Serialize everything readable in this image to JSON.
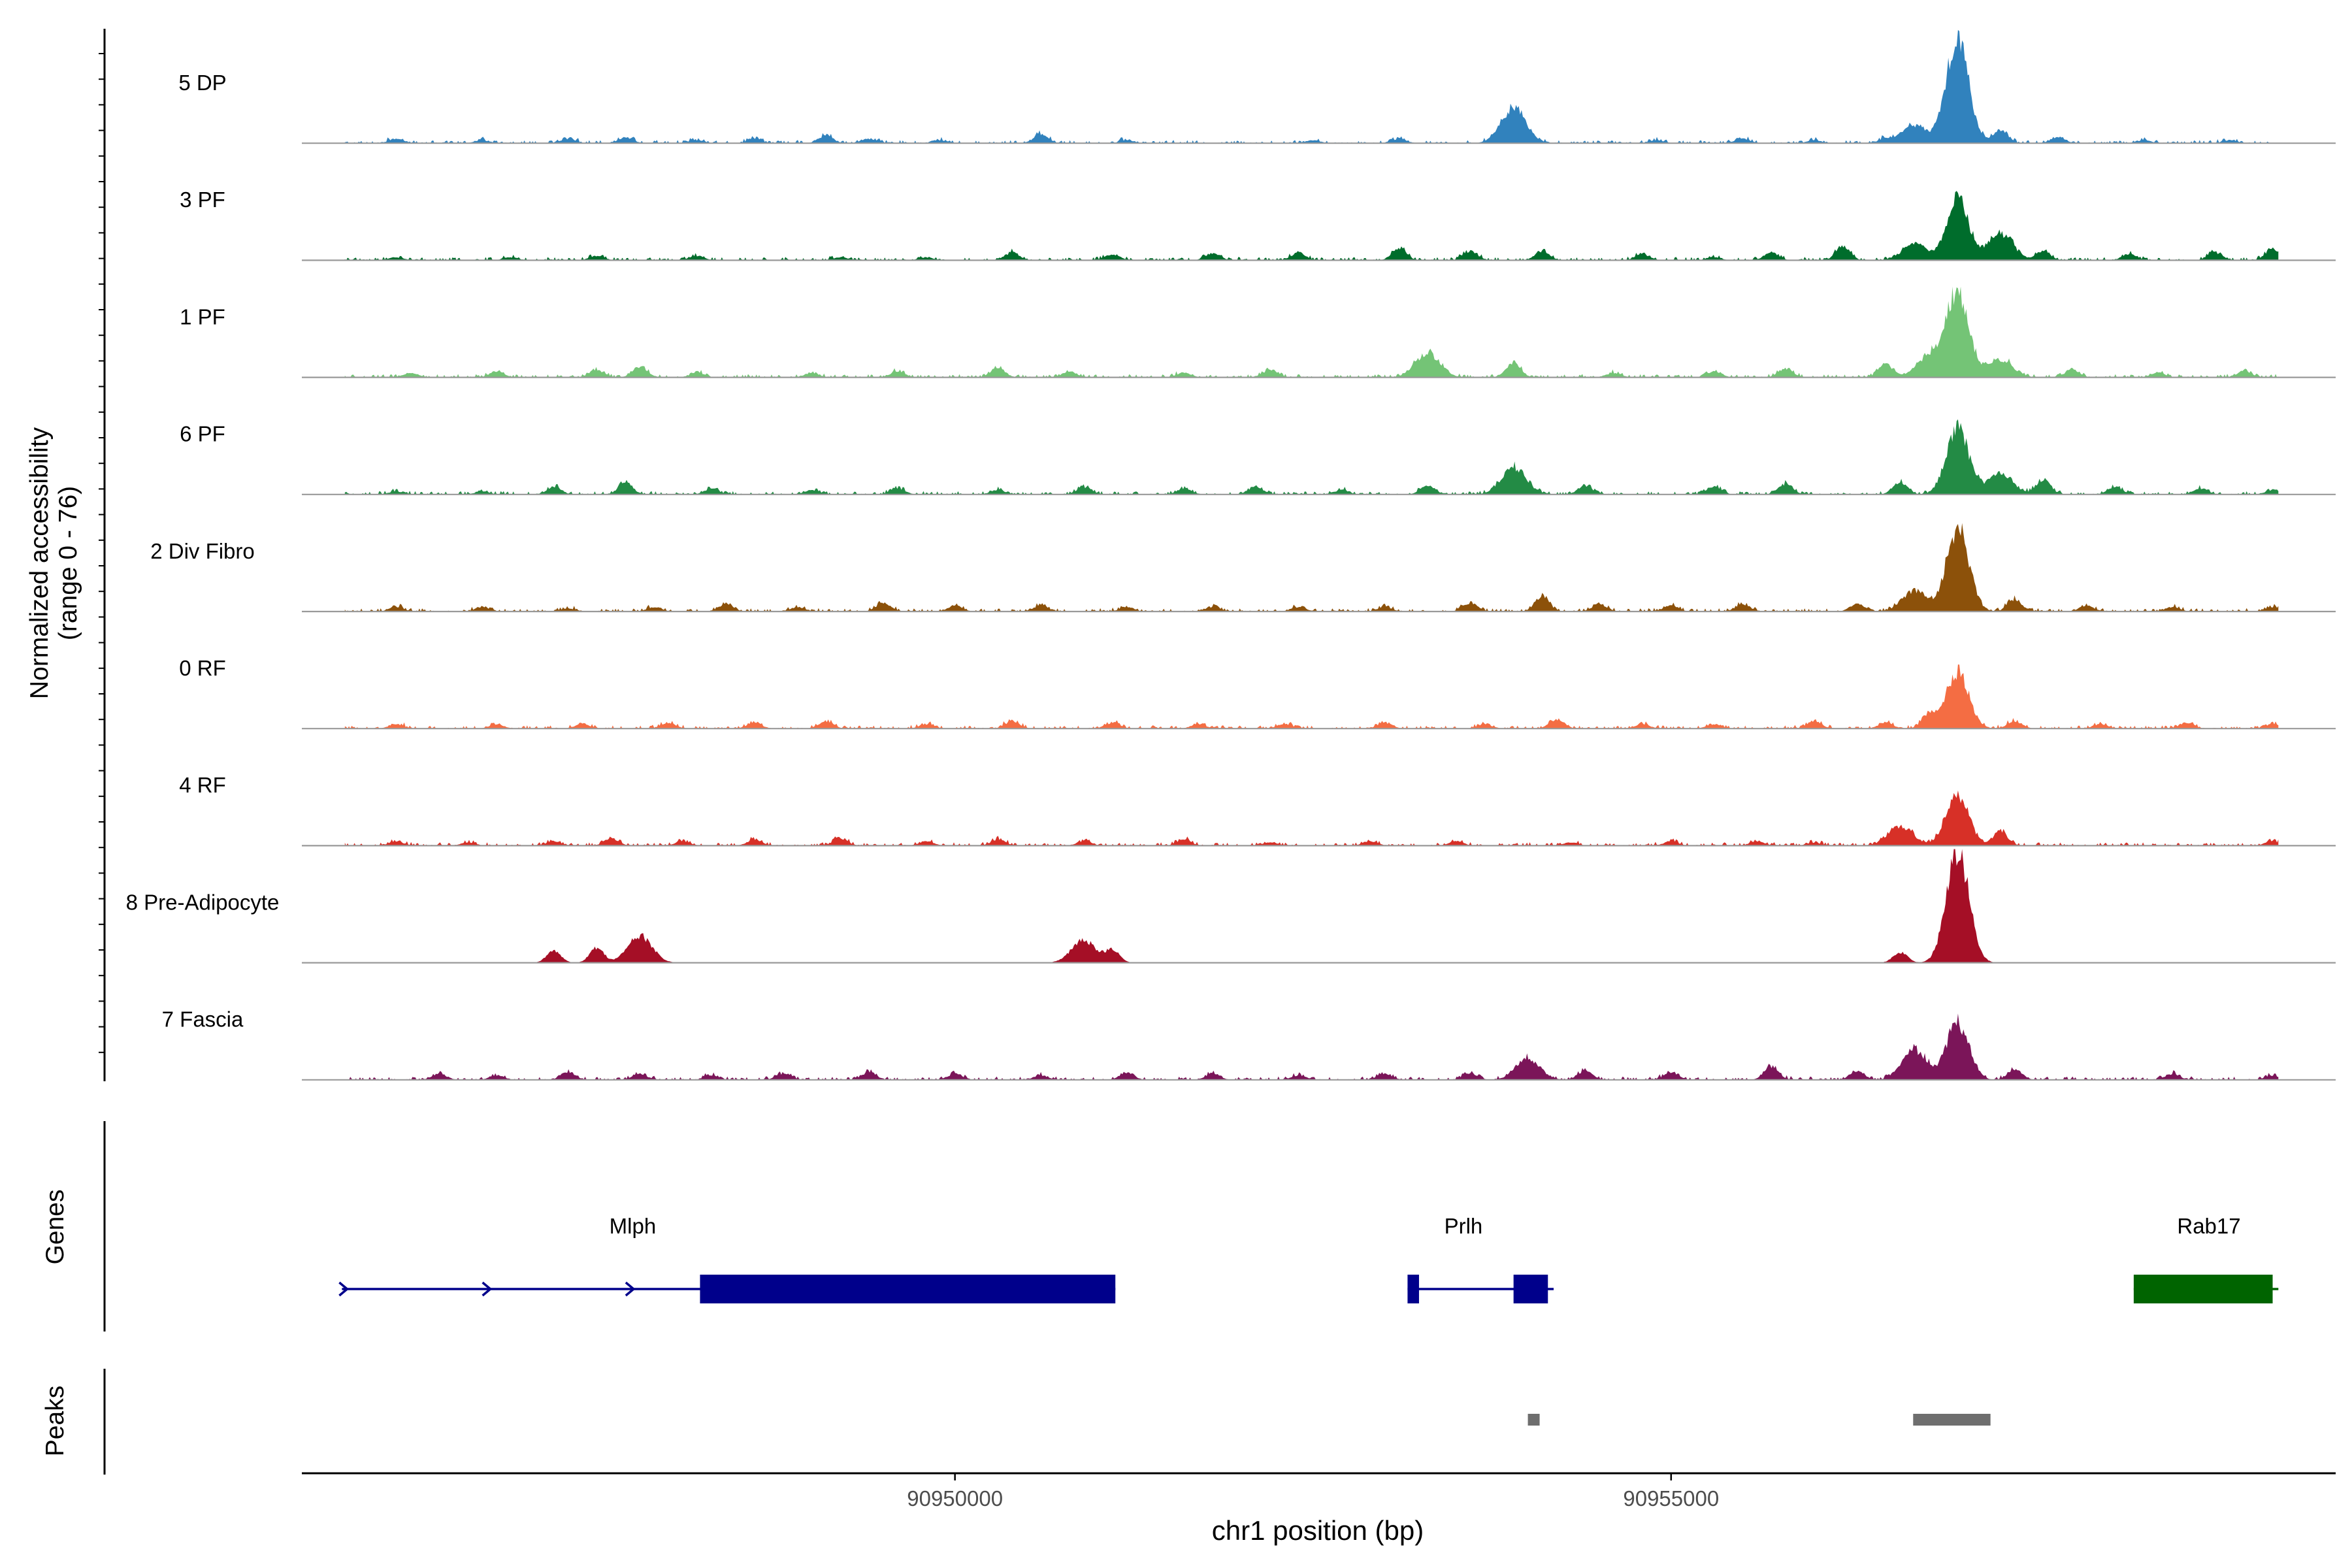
{
  "chart_data": {
    "type": "area",
    "ylabel_line1": "Normalized accessibility",
    "ylabel_line2": "(range 0 - 76)",
    "ylim": [
      0,
      76
    ],
    "xlabel": "chr1 position (bp)",
    "xlim": [
      90945440,
      90959640
    ],
    "x_ticks": [
      {
        "value": 90950000,
        "label": "90950000"
      },
      {
        "value": 90955000,
        "label": "90955000"
      }
    ],
    "tracks": [
      {
        "name": "5 DP",
        "color": "#3182BD",
        "peaks": [
          [
            90946100,
            3
          ],
          [
            90946700,
            2
          ],
          [
            90947300,
            3
          ],
          [
            90947700,
            4
          ],
          [
            90948200,
            2
          ],
          [
            90948600,
            3
          ],
          [
            90949100,
            5
          ],
          [
            90949400,
            3
          ],
          [
            90949900,
            2
          ],
          [
            90950600,
            6
          ],
          [
            90951200,
            2
          ],
          [
            90952500,
            2
          ],
          [
            90953100,
            3
          ],
          [
            90953900,
            24
          ],
          [
            90954900,
            2
          ],
          [
            90955500,
            3
          ],
          [
            90956000,
            2
          ],
          [
            90956500,
            3
          ],
          [
            90956700,
            12
          ],
          [
            90957000,
            70
          ],
          [
            90957300,
            9
          ],
          [
            90957700,
            4
          ],
          [
            90958300,
            2
          ],
          [
            90958900,
            2
          ]
        ]
      },
      {
        "name": "3 PF",
        "color": "#006D2C",
        "peaks": [
          [
            90946100,
            2
          ],
          [
            90946900,
            2
          ],
          [
            90947500,
            3
          ],
          [
            90948200,
            3
          ],
          [
            90949200,
            2
          ],
          [
            90949800,
            2
          ],
          [
            90950400,
            5
          ],
          [
            90951100,
            4
          ],
          [
            90951800,
            5
          ],
          [
            90952400,
            5
          ],
          [
            90953100,
            8
          ],
          [
            90953600,
            6
          ],
          [
            90954100,
            6
          ],
          [
            90954800,
            4
          ],
          [
            90955300,
            2
          ],
          [
            90955700,
            5
          ],
          [
            90956200,
            9
          ],
          [
            90956700,
            11
          ],
          [
            90957000,
            40
          ],
          [
            90957300,
            18
          ],
          [
            90957600,
            6
          ],
          [
            90958200,
            4
          ],
          [
            90958800,
            5
          ],
          [
            90959200,
            8
          ]
        ]
      },
      {
        "name": "1 PF",
        "color": "#74C476",
        "peaks": [
          [
            90946200,
            3
          ],
          [
            90946800,
            4
          ],
          [
            90947500,
            5
          ],
          [
            90947800,
            7
          ],
          [
            90948200,
            3
          ],
          [
            90949000,
            3
          ],
          [
            90949600,
            4
          ],
          [
            90950300,
            6
          ],
          [
            90950800,
            4
          ],
          [
            90951600,
            3
          ],
          [
            90952200,
            5
          ],
          [
            90953300,
            16
          ],
          [
            90953900,
            10
          ],
          [
            90954600,
            3
          ],
          [
            90955300,
            4
          ],
          [
            90955800,
            6
          ],
          [
            90956500,
            9
          ],
          [
            90956800,
            14
          ],
          [
            90957000,
            58
          ],
          [
            90957300,
            12
          ],
          [
            90957800,
            5
          ],
          [
            90958400,
            3
          ],
          [
            90959000,
            4
          ]
        ]
      },
      {
        "name": "6 PF",
        "color": "#238B45",
        "peaks": [
          [
            90946100,
            2
          ],
          [
            90946700,
            2
          ],
          [
            90947200,
            5
          ],
          [
            90947700,
            8
          ],
          [
            90948300,
            4
          ],
          [
            90949000,
            3
          ],
          [
            90949600,
            4
          ],
          [
            90950300,
            3
          ],
          [
            90950900,
            5
          ],
          [
            90951600,
            4
          ],
          [
            90952100,
            5
          ],
          [
            90952700,
            3
          ],
          [
            90953300,
            6
          ],
          [
            90953900,
            18
          ],
          [
            90954400,
            6
          ],
          [
            90955300,
            5
          ],
          [
            90955800,
            7
          ],
          [
            90956600,
            8
          ],
          [
            90957000,
            44
          ],
          [
            90957300,
            14
          ],
          [
            90957600,
            10
          ],
          [
            90958100,
            5
          ],
          [
            90958700,
            4
          ],
          [
            90959200,
            3
          ]
        ]
      },
      {
        "name": "2 Div Fibro",
        "color": "#8C510A",
        "peaks": [
          [
            90946100,
            3
          ],
          [
            90946700,
            3
          ],
          [
            90947300,
            2
          ],
          [
            90947900,
            3
          ],
          [
            90948400,
            5
          ],
          [
            90948900,
            3
          ],
          [
            90949500,
            6
          ],
          [
            90950000,
            4
          ],
          [
            90950600,
            4
          ],
          [
            90951200,
            3
          ],
          [
            90951800,
            3
          ],
          [
            90952400,
            3
          ],
          [
            90953000,
            3
          ],
          [
            90953600,
            6
          ],
          [
            90954100,
            10
          ],
          [
            90954500,
            5
          ],
          [
            90955000,
            4
          ],
          [
            90955500,
            5
          ],
          [
            90956300,
            5
          ],
          [
            90956700,
            14
          ],
          [
            90957000,
            56
          ],
          [
            90957400,
            8
          ],
          [
            90957900,
            4
          ],
          [
            90958500,
            3
          ],
          [
            90959200,
            3
          ]
        ]
      },
      {
        "name": "0 RF",
        "color": "#F46D43",
        "peaks": [
          [
            90946100,
            3
          ],
          [
            90946800,
            3
          ],
          [
            90947400,
            3
          ],
          [
            90948000,
            4
          ],
          [
            90948600,
            4
          ],
          [
            90949100,
            5
          ],
          [
            90949800,
            3
          ],
          [
            90950400,
            5
          ],
          [
            90951100,
            4
          ],
          [
            90951700,
            3
          ],
          [
            90952300,
            3
          ],
          [
            90953000,
            4
          ],
          [
            90953700,
            3
          ],
          [
            90954200,
            6
          ],
          [
            90954800,
            3
          ],
          [
            90955300,
            3
          ],
          [
            90956000,
            5
          ],
          [
            90956500,
            4
          ],
          [
            90956800,
            9
          ],
          [
            90957000,
            38
          ],
          [
            90957400,
            5
          ],
          [
            90958000,
            3
          ],
          [
            90958600,
            4
          ],
          [
            90959200,
            3
          ]
        ]
      },
      {
        "name": "4 RF",
        "color": "#D73027",
        "peaks": [
          [
            90946100,
            3
          ],
          [
            90946600,
            2
          ],
          [
            90947200,
            3
          ],
          [
            90947600,
            5
          ],
          [
            90948100,
            3
          ],
          [
            90948600,
            4
          ],
          [
            90949200,
            5
          ],
          [
            90949800,
            3
          ],
          [
            90950300,
            4
          ],
          [
            90950900,
            3
          ],
          [
            90951600,
            4
          ],
          [
            90952200,
            2
          ],
          [
            90952900,
            3
          ],
          [
            90953500,
            3
          ],
          [
            90954300,
            2
          ],
          [
            90955000,
            3
          ],
          [
            90955600,
            3
          ],
          [
            90956000,
            2
          ],
          [
            90956600,
            13
          ],
          [
            90957000,
            34
          ],
          [
            90957300,
            10
          ],
          [
            90959200,
            3
          ]
        ]
      },
      {
        "name": "8 Pre-Adipocyte",
        "color": "#A50F26",
        "peaks": [
          [
            90947200,
            8
          ],
          [
            90947500,
            10
          ],
          [
            90947800,
            18
          ],
          [
            90950900,
            15
          ],
          [
            90951100,
            8
          ],
          [
            90956600,
            7
          ],
          [
            90957000,
            76
          ]
        ]
      },
      {
        "name": "7 Fascia",
        "color": "#7B1559",
        "peaks": [
          [
            90946400,
            4
          ],
          [
            90946800,
            3
          ],
          [
            90947300,
            5
          ],
          [
            90947800,
            4
          ],
          [
            90948300,
            3
          ],
          [
            90948800,
            4
          ],
          [
            90949400,
            5
          ],
          [
            90950000,
            4
          ],
          [
            90950600,
            3
          ],
          [
            90951200,
            5
          ],
          [
            90951800,
            4
          ],
          [
            90952400,
            3
          ],
          [
            90953000,
            4
          ],
          [
            90953600,
            4
          ],
          [
            90954000,
            14
          ],
          [
            90954400,
            6
          ],
          [
            90955000,
            5
          ],
          [
            90955700,
            9
          ],
          [
            90956300,
            6
          ],
          [
            90956700,
            20
          ],
          [
            90957000,
            38
          ],
          [
            90957400,
            7
          ],
          [
            90958500,
            4
          ],
          [
            90959200,
            3
          ]
        ]
      }
    ],
    "genes_label": "Genes",
    "genes": [
      {
        "name": "Mlph",
        "color": "#00008B",
        "strand": "+",
        "line_start": 90945720,
        "line_end": 90951120,
        "exons": [
          [
            90948220,
            90951120
          ]
        ]
      },
      {
        "name": "Prlh",
        "color": "#00008B",
        "strand": "",
        "line_start": 90953160,
        "line_end": 90954180,
        "exons": [
          [
            90953160,
            90953240
          ],
          [
            90953900,
            90954140
          ]
        ]
      },
      {
        "name": "Rab17",
        "color": "#006400",
        "strand": "",
        "line_start": 90958230,
        "line_end": 90959240,
        "exons": [
          [
            90958230,
            90959200
          ]
        ]
      }
    ],
    "peaks_label": "Peaks",
    "peak_regions": [
      [
        90954000,
        90954080
      ],
      [
        90956690,
        90957230
      ]
    ],
    "peak_color": "#6E6E6E"
  }
}
